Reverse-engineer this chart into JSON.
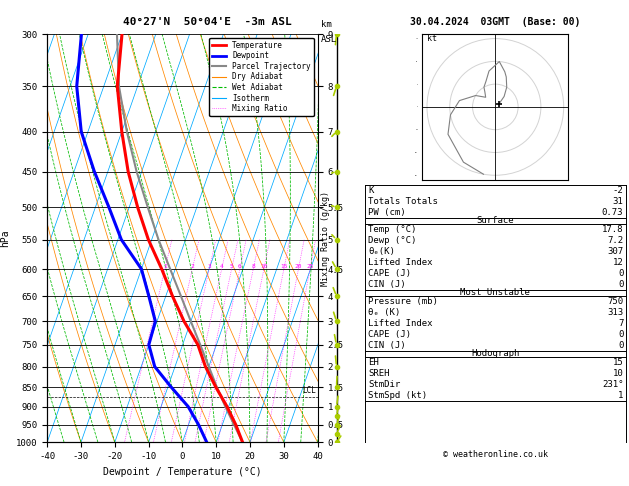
{
  "title_left": "40°27'N  50°04'E  -3m ASL",
  "title_right": "30.04.2024  03GMT  (Base: 00)",
  "xlabel": "Dewpoint / Temperature (°C)",
  "ylabel_left": "hPa",
  "ylabel_right_top": "km",
  "ylabel_right_bot": "ASL",
  "ylabel_mid": "Mixing Ratio (g/kg)",
  "p_levels": [
    300,
    350,
    400,
    450,
    500,
    550,
    600,
    650,
    700,
    750,
    800,
    850,
    900,
    950,
    1000
  ],
  "p_min": 300,
  "p_max": 1000,
  "t_min": -40,
  "t_max": 40,
  "skew_factor": 35,
  "background_color": "#ffffff",
  "plot_bg": "#ffffff",
  "isotherm_color": "#00aaff",
  "dry_adiabat_color": "#ff8800",
  "wet_adiabat_color": "#00bb00",
  "mixing_ratio_color": "#ff00ff",
  "temp_color": "#ff0000",
  "dewpoint_color": "#0000ff",
  "parcel_color": "#888888",
  "temp_profile_p": [
    1000,
    950,
    900,
    850,
    800,
    750,
    700,
    650,
    600,
    550,
    500,
    450,
    400,
    350,
    300
  ],
  "temp_profile_t": [
    17.8,
    14.0,
    9.5,
    4.2,
    -1.0,
    -5.5,
    -12.0,
    -18.0,
    -24.0,
    -31.0,
    -37.5,
    -44.0,
    -50.0,
    -56.0,
    -60.0
  ],
  "dewp_profile_p": [
    1000,
    950,
    900,
    850,
    800,
    750,
    700,
    650,
    600,
    550,
    500,
    450,
    400,
    350,
    300
  ],
  "dewp_profile_t": [
    7.2,
    3.0,
    -2.0,
    -9.0,
    -16.0,
    -20.0,
    -20.5,
    -25.0,
    -30.0,
    -39.0,
    -46.0,
    -54.0,
    -62.0,
    -68.0,
    -72.0
  ],
  "parcel_profile_p": [
    1000,
    950,
    900,
    850,
    800,
    750,
    700,
    650,
    600,
    550,
    500,
    450,
    400,
    350,
    300
  ],
  "parcel_profile_t": [
    17.8,
    13.5,
    9.0,
    4.5,
    0.0,
    -4.8,
    -10.0,
    -15.5,
    -21.5,
    -28.0,
    -34.5,
    -41.5,
    -48.5,
    -55.5,
    -61.5
  ],
  "wind_p": [
    1000,
    975,
    950,
    925,
    900,
    850,
    800,
    750,
    700,
    650,
    600,
    550,
    500,
    450,
    400,
    350,
    300
  ],
  "wind_dir": [
    231,
    220,
    210,
    200,
    195,
    185,
    170,
    160,
    150,
    145,
    135,
    120,
    100,
    80,
    60,
    30,
    10
  ],
  "wind_spd": [
    1,
    3,
    5,
    7,
    8,
    10,
    8,
    6,
    5,
    4,
    3,
    5,
    8,
    10,
    12,
    14,
    15
  ],
  "mixing_ratio_lines": [
    1,
    2,
    3,
    4,
    5,
    6,
    8,
    10,
    15,
    20,
    25
  ],
  "km_ticks": {
    "300": 9,
    "350": 8,
    "400": 7,
    "450": 6,
    "500": 5.5,
    "550": 5,
    "600": 4.5,
    "650": 4,
    "700": 3,
    "750": 2.5,
    "800": 2,
    "850": 1.5,
    "900": 1,
    "950": 0.5,
    "1000": 0
  },
  "lcl_pressure": 875,
  "info_K": "-2",
  "info_TT": "31",
  "info_PW": "0.73",
  "sfc_temp": "17.8",
  "sfc_dewp": "7.2",
  "sfc_theta": "307",
  "sfc_li": "12",
  "sfc_cape": "0",
  "sfc_cin": "0",
  "mu_pressure": "750",
  "mu_theta": "313",
  "mu_li": "7",
  "mu_cape": "0",
  "mu_cin": "0",
  "hodo_EH": "15",
  "hodo_SREH": "10",
  "hodo_StmDir": "231°",
  "hodo_StmSpd": "1",
  "copyright": "© weatheronline.co.uk"
}
